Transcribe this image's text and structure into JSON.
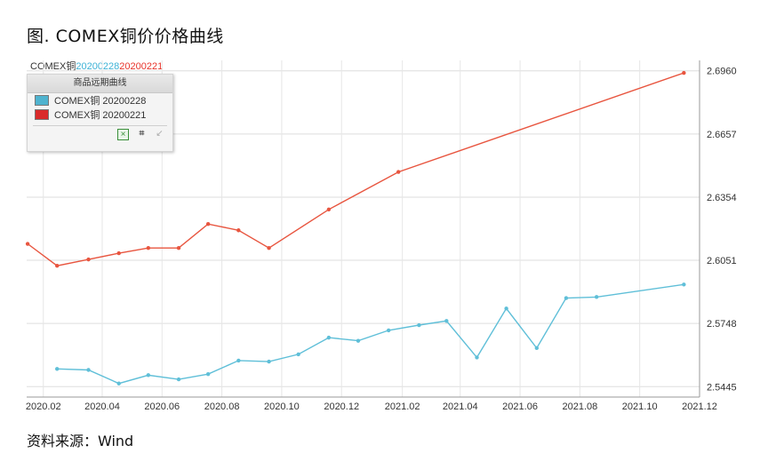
{
  "figure_title": "图. COMEX铜价价格曲线",
  "header": {
    "base": "COMEX铜",
    "date1": "20200228",
    "date2": "20200221"
  },
  "legend": {
    "title": "商品远期曲线",
    "items": [
      {
        "label": "COMEX铜 20200228",
        "color": "#4fb3cf"
      },
      {
        "label": "COMEX铜 20200221",
        "color": "#d92b2b"
      }
    ],
    "tools": [
      "excel-icon",
      "crop-icon",
      "export-icon"
    ]
  },
  "source": "资料来源：Wind",
  "chart_data": {
    "type": "line",
    "x_ticks": [
      "2020.02",
      "2020.04",
      "2020.06",
      "2020.08",
      "2020.10",
      "2020.12",
      "2021.02",
      "2021.04",
      "2021.06",
      "2021.08",
      "2021.10",
      "2021.12"
    ],
    "y_ticks": [
      "2.5445",
      "2.5748",
      "2.6051",
      "2.6354",
      "2.6657",
      "2.6960"
    ],
    "ylim": [
      2.5395,
      2.701
    ],
    "xlim": [
      "2020-01-15",
      "2021-12-01"
    ],
    "grid": true,
    "series": [
      {
        "name": "COMEX铜 20200221",
        "color": "#e8553f",
        "points": [
          [
            "2020-01-16",
            2.613
          ],
          [
            "2020-02-15",
            2.6025
          ],
          [
            "2020-03-18",
            2.6055
          ],
          [
            "2020-04-18",
            2.6085
          ],
          [
            "2020-05-18",
            2.611
          ],
          [
            "2020-06-18",
            2.611
          ],
          [
            "2020-07-18",
            2.6225
          ],
          [
            "2020-08-18",
            2.6195
          ],
          [
            "2020-09-18",
            2.611
          ],
          [
            "2020-11-18",
            2.6295
          ],
          [
            "2021-01-28",
            2.6475
          ],
          [
            "2021-11-15",
            2.695
          ]
        ]
      },
      {
        "name": "COMEX铜 20200228",
        "color": "#5fbfd8",
        "points": [
          [
            "2020-02-15",
            2.553
          ],
          [
            "2020-03-18",
            2.5525
          ],
          [
            "2020-04-18",
            2.546
          ],
          [
            "2020-05-18",
            2.55
          ],
          [
            "2020-06-18",
            2.548
          ],
          [
            "2020-07-18",
            2.5505
          ],
          [
            "2020-08-18",
            2.557
          ],
          [
            "2020-09-18",
            2.5565
          ],
          [
            "2020-10-18",
            2.56
          ],
          [
            "2020-11-18",
            2.568
          ],
          [
            "2020-12-18",
            2.5665
          ],
          [
            "2021-01-18",
            2.5715
          ],
          [
            "2021-02-18",
            2.574
          ],
          [
            "2021-03-18",
            2.576
          ],
          [
            "2021-04-18",
            2.5585
          ],
          [
            "2021-05-18",
            2.582
          ],
          [
            "2021-06-18",
            2.563
          ],
          [
            "2021-07-18",
            2.587
          ],
          [
            "2021-08-18",
            2.5875
          ],
          [
            "2021-11-15",
            2.5935
          ]
        ]
      }
    ]
  }
}
